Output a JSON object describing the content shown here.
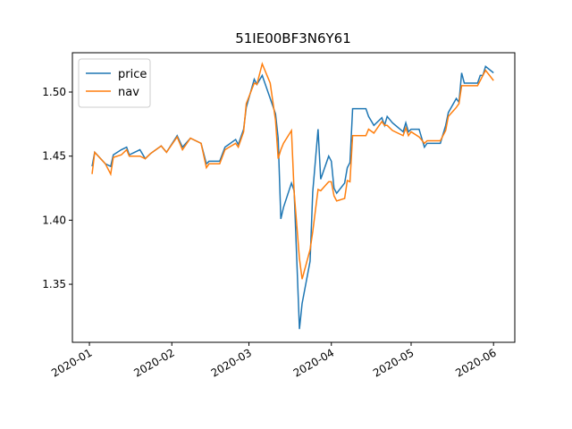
{
  "chart_data": {
    "type": "line",
    "title": "51IE00BF3N6Y61",
    "x": [
      1,
      2,
      6,
      8,
      9,
      12,
      14,
      15,
      19,
      21,
      23,
      27,
      29,
      33,
      35,
      38,
      42,
      44,
      45,
      49,
      51,
      55,
      56,
      58,
      59,
      62,
      63,
      65,
      68,
      70,
      71,
      72,
      73,
      76,
      77,
      79,
      80,
      83,
      84,
      86,
      87,
      90,
      91,
      92,
      93,
      96,
      97,
      98,
      99,
      104,
      105,
      107,
      110,
      111,
      112,
      114,
      118,
      119,
      120,
      121,
      124,
      126,
      127,
      132,
      134,
      135,
      138,
      139,
      140,
      141,
      146,
      147,
      148,
      149,
      152
    ],
    "series": [
      {
        "name": "price",
        "color": "#1f77b4",
        "values": [
          1.442,
          1.453,
          1.444,
          1.442,
          1.451,
          1.455,
          1.457,
          1.451,
          1.455,
          1.448,
          1.452,
          1.458,
          1.453,
          1.466,
          1.457,
          1.464,
          1.46,
          1.444,
          1.446,
          1.446,
          1.457,
          1.463,
          1.459,
          1.471,
          1.488,
          1.51,
          1.506,
          1.513,
          1.495,
          1.483,
          1.464,
          1.401,
          1.41,
          1.429,
          1.423,
          1.315,
          1.335,
          1.368,
          1.422,
          1.471,
          1.432,
          1.45,
          1.446,
          1.425,
          1.421,
          1.429,
          1.441,
          1.445,
          1.487,
          1.487,
          1.481,
          1.474,
          1.48,
          1.474,
          1.481,
          1.476,
          1.469,
          1.476,
          1.469,
          1.471,
          1.471,
          1.457,
          1.46,
          1.46,
          1.474,
          1.484,
          1.495,
          1.492,
          1.515,
          1.507,
          1.507,
          1.513,
          1.513,
          1.52,
          1.515
        ]
      },
      {
        "name": "nav",
        "color": "#ff7f0e",
        "values": [
          1.436,
          1.453,
          1.444,
          1.436,
          1.449,
          1.451,
          1.455,
          1.45,
          1.45,
          1.448,
          1.452,
          1.458,
          1.453,
          1.465,
          1.455,
          1.464,
          1.46,
          1.441,
          1.444,
          1.444,
          1.455,
          1.46,
          1.457,
          1.469,
          1.491,
          1.507,
          1.506,
          1.522,
          1.507,
          1.478,
          1.448,
          1.455,
          1.46,
          1.47,
          1.422,
          1.37,
          1.354,
          1.377,
          1.391,
          1.424,
          1.423,
          1.43,
          1.43,
          1.419,
          1.415,
          1.417,
          1.431,
          1.43,
          1.466,
          1.466,
          1.471,
          1.468,
          1.477,
          1.474,
          1.474,
          1.47,
          1.466,
          1.472,
          1.466,
          1.469,
          1.465,
          1.46,
          1.462,
          1.462,
          1.47,
          1.481,
          1.488,
          1.491,
          1.505,
          1.505,
          1.505,
          1.509,
          1.513,
          1.517,
          1.509
        ]
      }
    ],
    "xlim": [
      -6.4,
      160
    ],
    "xticks": [
      {
        "value": 0,
        "label": "2020-01"
      },
      {
        "value": 31,
        "label": "2020-02"
      },
      {
        "value": 60,
        "label": "2020-03"
      },
      {
        "value": 91,
        "label": "2020-04"
      },
      {
        "value": 121,
        "label": "2020-05"
      },
      {
        "value": 152,
        "label": "2020-06"
      }
    ],
    "ylim": [
      1.3047,
      1.5307
    ],
    "yticks": [
      1.35,
      {
        "value": 1.4,
        "label": "1.40"
      },
      1.45,
      {
        "value": 1.5,
        "label": "1.50"
      }
    ],
    "legend": "upper-left",
    "grid": false
  }
}
